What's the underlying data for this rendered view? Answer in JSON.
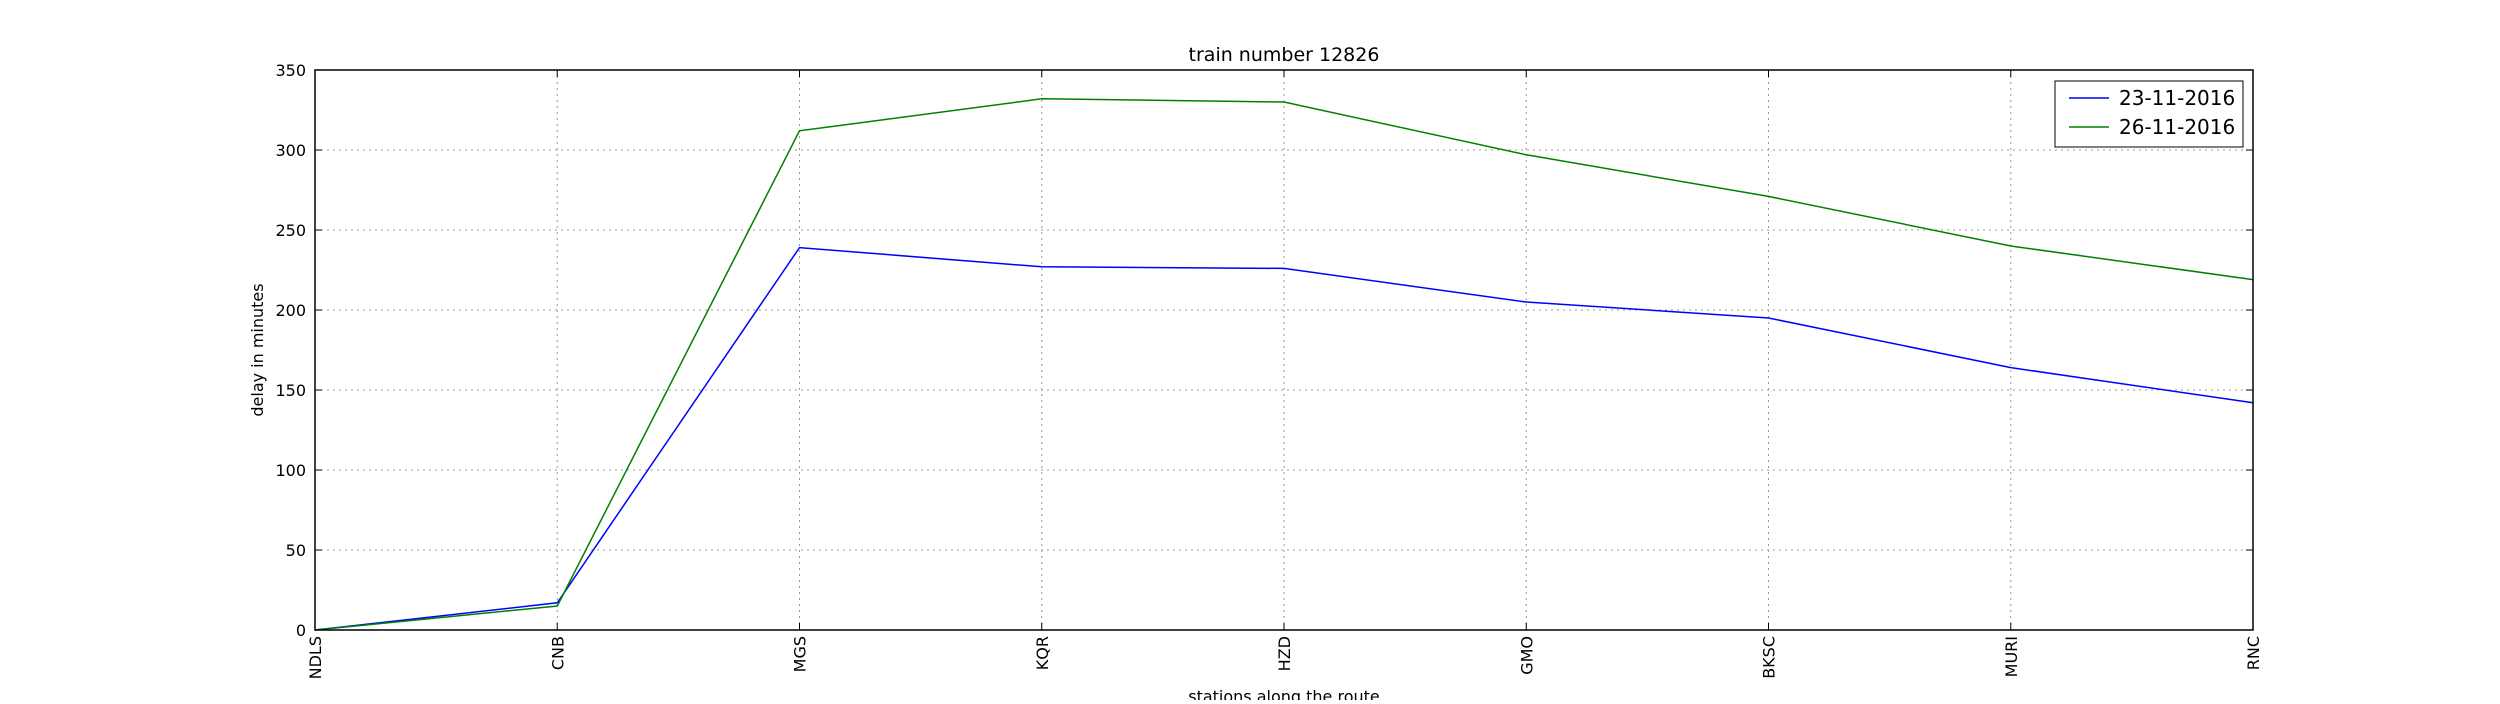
{
  "chart_data": {
    "type": "line",
    "title": "train number 12826",
    "xlabel": "stations along the route",
    "ylabel": "delay in minutes",
    "categories": [
      "NDLS",
      "CNB",
      "MGS",
      "KQR",
      "HZD",
      "GMO",
      "BKSC",
      "MURI",
      "RNC"
    ],
    "ylim": [
      0,
      350
    ],
    "yticks": [
      0,
      50,
      100,
      150,
      200,
      250,
      300,
      350
    ],
    "grid": true,
    "legend_position": "top-right",
    "series": [
      {
        "name": "23-11-2016",
        "color": "#0000ff",
        "values": [
          0,
          17,
          239,
          227,
          226,
          205,
          195,
          164,
          142
        ]
      },
      {
        "name": "26-11-2016",
        "color": "#008000",
        "values": [
          0,
          15,
          312,
          332,
          330,
          297,
          271,
          240,
          219
        ]
      }
    ]
  }
}
